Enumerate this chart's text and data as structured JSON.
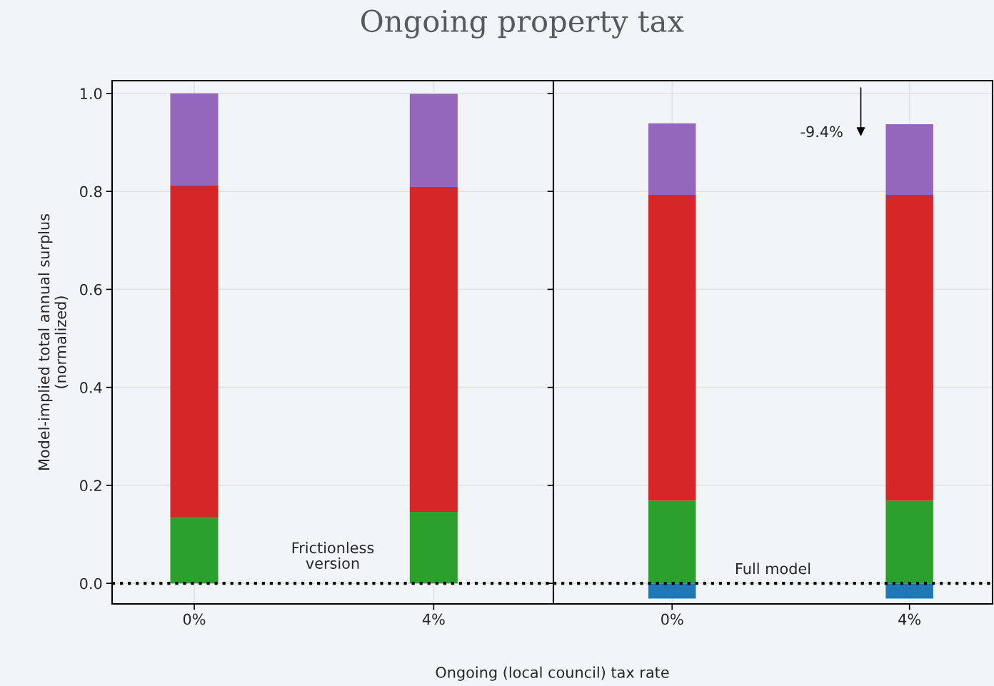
{
  "chart_data": [
    {
      "type": "bar",
      "title": "Ongoing property tax",
      "xlabel": "Ongoing (local council) tax rate",
      "ylabel": "Model-implied total annual surplus\n(normalized)",
      "categories": [
        "0%",
        "4%"
      ],
      "stacked": true,
      "series": [
        {
          "color": "#1f77b4",
          "values": [
            0,
            0
          ]
        },
        {
          "color": "#2ca02c",
          "values": [
            0.134,
            0.146
          ]
        },
        {
          "color": "#d62728",
          "values": [
            0.679,
            0.663
          ]
        },
        {
          "color": "#9467bd",
          "values": [
            0.187,
            0.19
          ]
        }
      ],
      "ylim": [
        -0.042,
        1.026
      ],
      "yticks": [
        {
          "value": 0,
          "label": "0.0"
        },
        0.2,
        0.4,
        0.6,
        0.8,
        {
          "value": 1,
          "label": "1.0"
        }
      ],
      "grid": true,
      "ref_lines": [
        {
          "axis": "y",
          "value": 0,
          "line_style": "dotted",
          "color": "#000000"
        }
      ],
      "annotations": [
        "Frictionless\nversion"
      ]
    },
    {
      "type": "bar",
      "categories": [
        "0%",
        "4%"
      ],
      "stacked": true,
      "series": [
        {
          "color": "#1f77b4",
          "values": [
            -0.031,
            -0.031
          ]
        },
        {
          "color": "#2ca02c",
          "values": [
            0.169,
            0.169
          ]
        },
        {
          "color": "#d62728",
          "values": [
            0.624,
            0.624
          ]
        },
        {
          "color": "#9467bd",
          "values": [
            0.146,
            0.144
          ]
        }
      ],
      "ylim": [
        -0.042,
        1.026
      ],
      "yticks": [
        0,
        0.2,
        0.4,
        0.6,
        0.8,
        1
      ],
      "grid": true,
      "tick_labels": "x",
      "ref_lines": [
        {
          "axis": "y",
          "value": 0,
          "line_style": "dotted",
          "color": "#000000"
        }
      ],
      "annotations": [
        "Full model",
        "-9.4%"
      ]
    }
  ]
}
